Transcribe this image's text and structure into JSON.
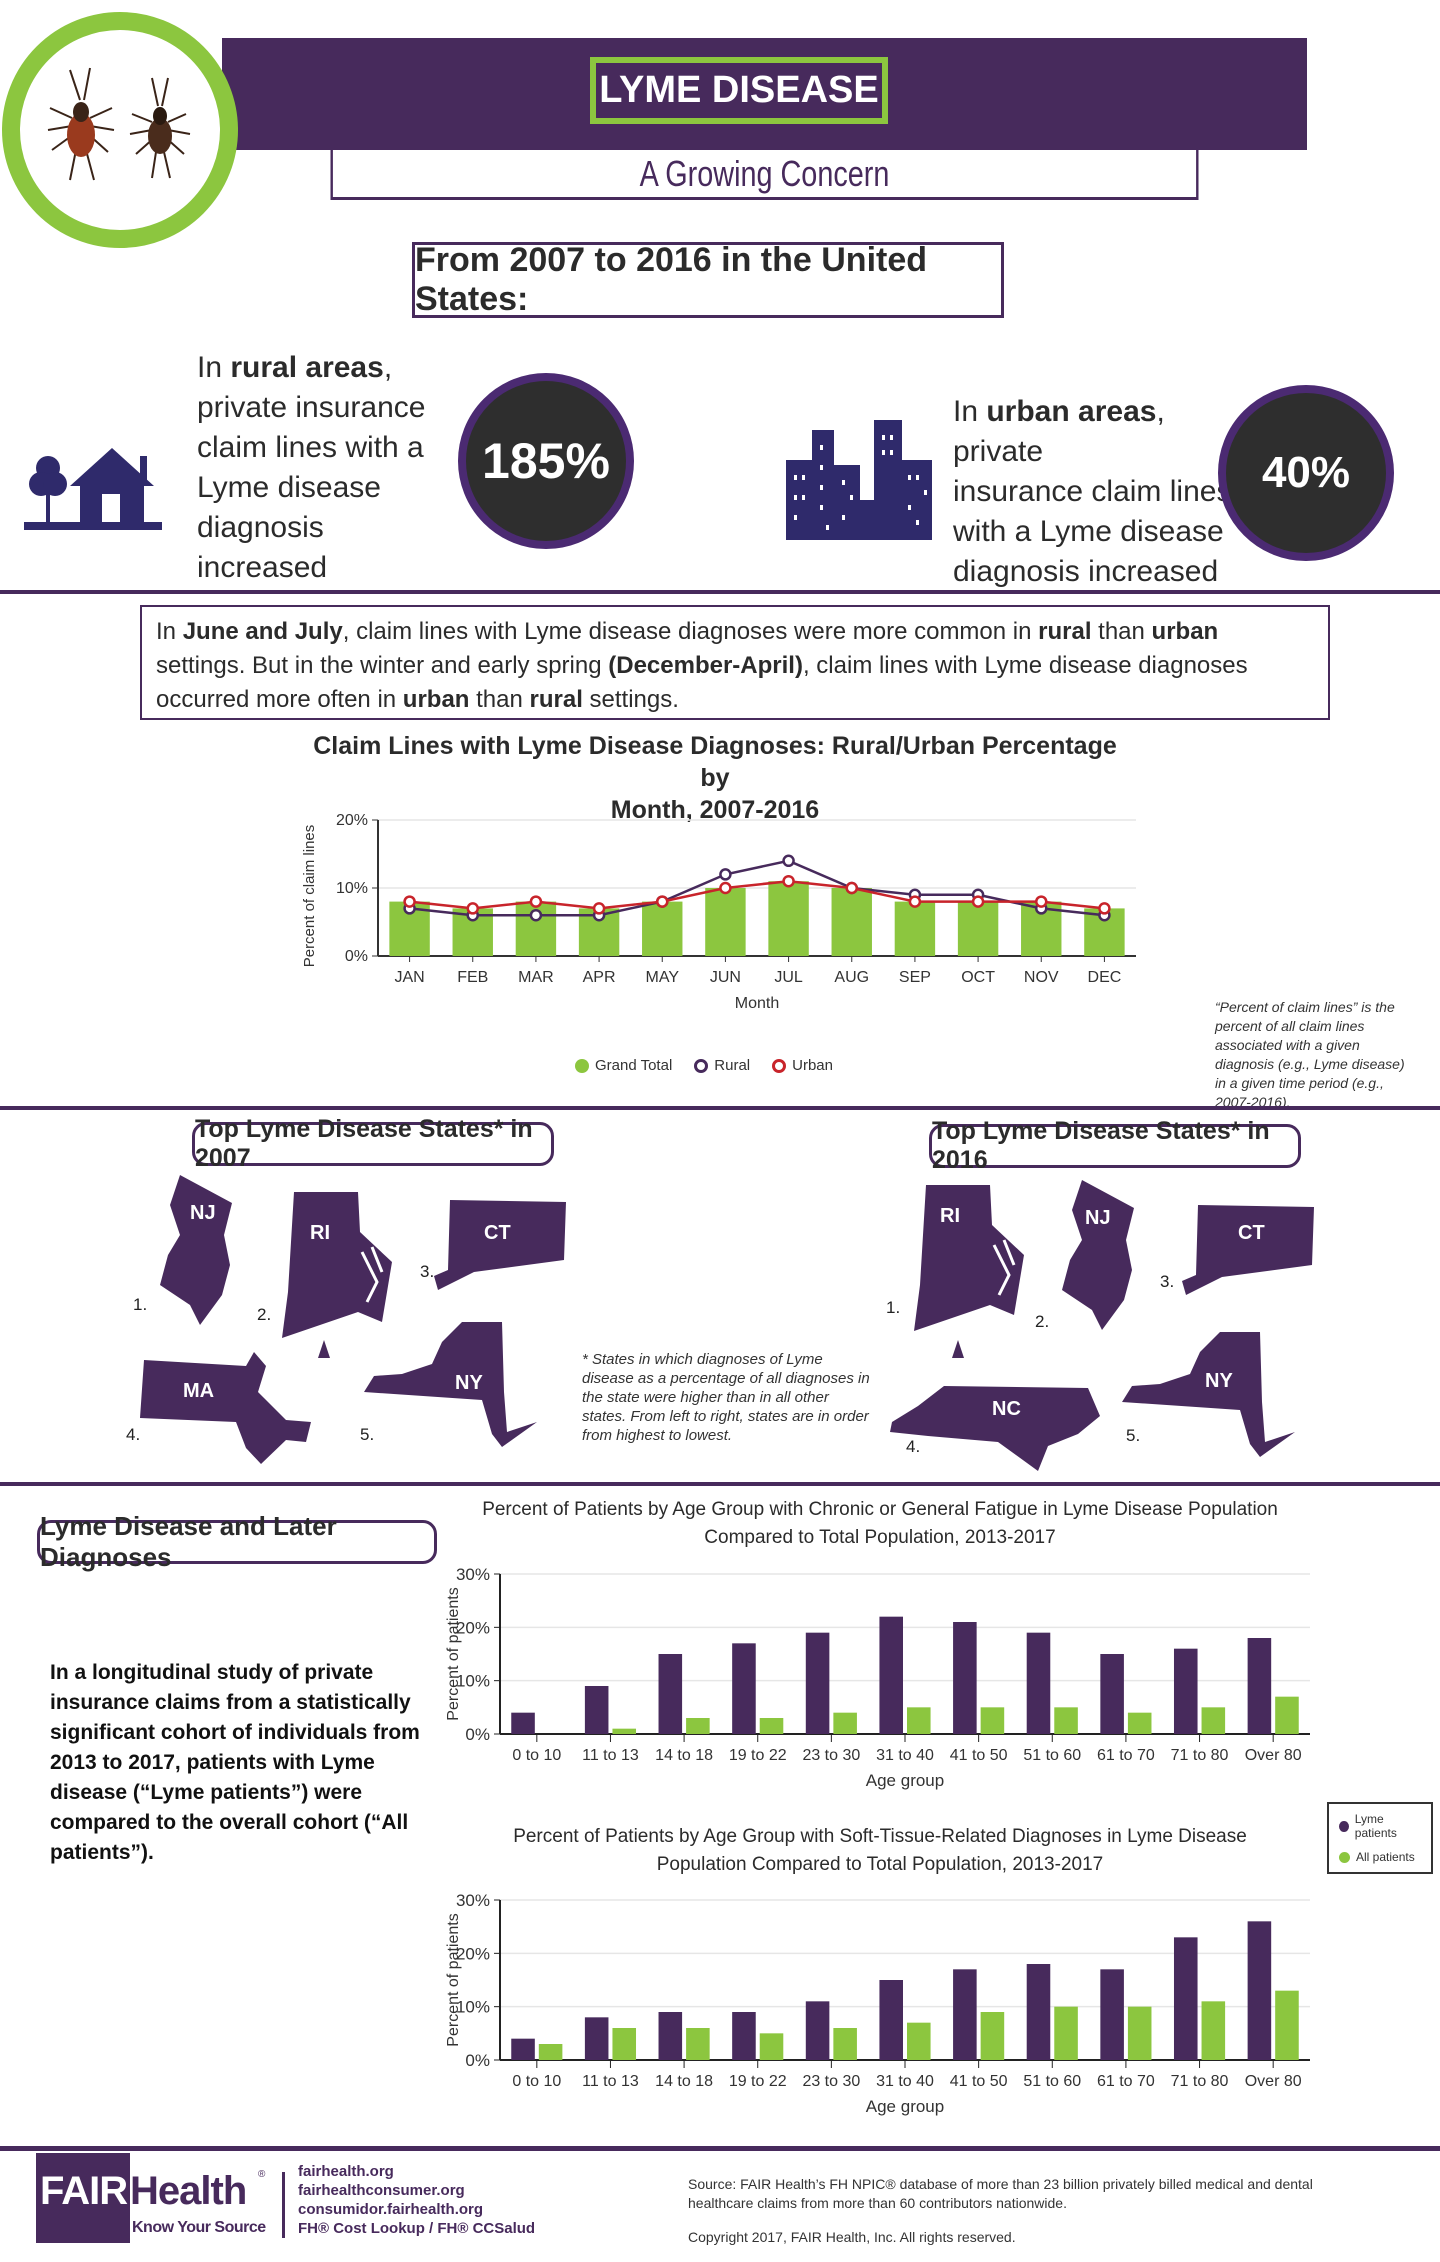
{
  "header": {
    "title": "LYME DISEASE",
    "subtitle": "A Growing Concern",
    "period_heading": "From 2007 to 2016 in the United States:"
  },
  "stats": {
    "rural": {
      "line1_pre": "In ",
      "line1_bold": "rural areas",
      "line1_post": ",",
      "lines": [
        "private insurance",
        "claim lines with a",
        "Lyme disease",
        "diagnosis increased"
      ],
      "value": "185%",
      "icon": "house-tree-icon"
    },
    "urban": {
      "line1_pre": "In ",
      "line1_bold": "urban areas",
      "line1_post": ", private",
      "lines": [
        "insurance claim lines",
        "with a Lyme disease",
        "diagnosis increased"
      ],
      "value": "40%",
      "icon": "city-buildings-icon"
    }
  },
  "note": {
    "s1": "In ",
    "b1": "June and July",
    "s2": ", claim lines with Lyme disease diagnoses were more common in ",
    "b2": "rural",
    "s3": " than ",
    "b3": "urban",
    "s4": " settings. But in the winter and early spring ",
    "b4": "(December-April)",
    "s5": ", claim lines with Lyme disease diagnoses occurred more often in ",
    "b5": "urban",
    "s6": " than ",
    "b6": "rural",
    "s7": " settings."
  },
  "chart_data": [
    {
      "type": "bar+line",
      "title": "Claim Lines with Lyme Disease Diagnoses: Rural/Urban Percentage by Month, 2007-2016",
      "xlabel": "Month",
      "ylabel": "Percent of claim lines",
      "ylim": [
        0,
        20
      ],
      "yticks": [
        "0%",
        "10%",
        "20%"
      ],
      "grid": true,
      "legend_position": "bottom",
      "categories": [
        "JAN",
        "FEB",
        "MAR",
        "APR",
        "MAY",
        "JUN",
        "JUL",
        "AUG",
        "SEP",
        "OCT",
        "NOV",
        "DEC"
      ],
      "series": [
        {
          "name": "Grand Total",
          "kind": "bar",
          "color": "#8cc63f",
          "values": [
            8,
            7,
            8,
            7,
            8,
            10,
            11,
            10,
            8,
            8,
            8,
            7
          ]
        },
        {
          "name": "Rural",
          "kind": "line",
          "color": "#472a5c",
          "values": [
            7,
            6,
            6,
            6,
            8,
            12,
            14,
            10,
            9,
            9,
            7,
            6
          ]
        },
        {
          "name": "Urban",
          "kind": "line",
          "color": "#c8242b",
          "values": [
            8,
            7,
            8,
            7,
            8,
            10,
            11,
            10,
            8,
            8,
            8,
            7
          ]
        }
      ],
      "annotation": "“Percent of claim lines” is the percent of all claim lines associated with a given diagnosis (e.g., Lyme disease) in a given time period (e.g., 2007-2016)."
    },
    {
      "type": "bar",
      "title": "Percent of Patients by Age Group with Chronic or General Fatigue in Lyme Disease Population Compared to Total Population, 2013-2017",
      "xlabel": "Age group",
      "ylabel": "Percent of patients",
      "ylim": [
        0,
        30
      ],
      "yticks": [
        "0%",
        "10%",
        "20%",
        "30%"
      ],
      "grid": true,
      "legend_position": "right",
      "categories": [
        "0 to 10",
        "11 to 13",
        "14 to 18",
        "19 to 22",
        "23 to 30",
        "31 to 40",
        "41 to 50",
        "51 to 60",
        "61 to 70",
        "71 to 80",
        "Over 80"
      ],
      "series": [
        {
          "name": "Lyme patients",
          "color": "#472a5c",
          "values": [
            4,
            9,
            15,
            17,
            19,
            22,
            21,
            19,
            15,
            16,
            18
          ]
        },
        {
          "name": "All patients",
          "color": "#8cc63f",
          "values": [
            0,
            1,
            3,
            3,
            4,
            5,
            5,
            5,
            4,
            5,
            7
          ]
        }
      ]
    },
    {
      "type": "bar",
      "title": "Percent of Patients by Age Group with Soft-Tissue-Related Diagnoses in Lyme Disease Population Compared to Total Population, 2013-2017",
      "xlabel": "Age group",
      "ylabel": "Percent of patients",
      "ylim": [
        0,
        30
      ],
      "yticks": [
        "0%",
        "10%",
        "20%",
        "30%"
      ],
      "grid": true,
      "legend_position": "right",
      "categories": [
        "0 to 10",
        "11 to 13",
        "14 to 18",
        "19 to 22",
        "23 to 30",
        "31 to 40",
        "41 to 50",
        "51 to 60",
        "61 to 70",
        "71 to 80",
        "Over 80"
      ],
      "series": [
        {
          "name": "Lyme patients",
          "color": "#472a5c",
          "values": [
            4,
            8,
            9,
            9,
            11,
            15,
            17,
            18,
            17,
            23,
            26
          ]
        },
        {
          "name": "All patients",
          "color": "#8cc63f",
          "values": [
            3,
            6,
            6,
            5,
            6,
            7,
            9,
            10,
            10,
            11,
            13
          ]
        }
      ]
    }
  ],
  "chart1": {
    "title_l1": "Claim Lines with Lyme Disease Diagnoses: Rural/Urban Percentage by",
    "title_l2": "Month, 2007-2016"
  },
  "chart2": {
    "title_l1": "Percent of Patients by Age Group with Chronic or General Fatigue in Lyme Disease Population",
    "title_l2": "Compared to Total Population, 2013-2017"
  },
  "chart3": {
    "title_l1": "Percent of Patients by Age Group with Soft-Tissue-Related Diagnoses in Lyme Disease",
    "title_l2": "Population Compared to Total Population, 2013-2017"
  },
  "states": {
    "y2007": {
      "title": "Top Lyme Disease States* in 2007",
      "items": [
        {
          "rank": "1.",
          "abbr": "NJ"
        },
        {
          "rank": "2.",
          "abbr": "RI"
        },
        {
          "rank": "3.",
          "abbr": "CT"
        },
        {
          "rank": "4.",
          "abbr": "MA"
        },
        {
          "rank": "5.",
          "abbr": "NY"
        }
      ]
    },
    "y2016": {
      "title": "Top Lyme Disease States* in 2016",
      "items": [
        {
          "rank": "1.",
          "abbr": "RI"
        },
        {
          "rank": "2.",
          "abbr": "NJ"
        },
        {
          "rank": "3.",
          "abbr": "CT"
        },
        {
          "rank": "4.",
          "abbr": "NC"
        },
        {
          "rank": "5.",
          "abbr": "NY"
        }
      ]
    },
    "footnote": "* States in which diagnoses of Lyme disease as a percentage of all diagnoses in the state were higher than in all other states. From left to right, states are in order from highest to lowest."
  },
  "later": {
    "title": "Lyme Disease and Later Diagnoses",
    "body": "In a longitudinal study of private insurance claims from a statistically significant cohort of individuals from 2013 to 2017, patients with Lyme disease (“Lyme patients”) were compared to the overall cohort (“All patients”).",
    "legend": [
      "Lyme patients",
      "All patients"
    ]
  },
  "footer": {
    "logo_fair": "FAIR",
    "logo_health": "Health",
    "logo_reg": "®",
    "tagline": "Know Your Source",
    "links": [
      "fairhealth.org",
      "fairhealthconsumer.org",
      "consumidor.fairhealth.org",
      "FH® Cost Lookup / FH® CCSalud"
    ],
    "source": "Source: FAIR Health’s FH NPIC® database of more than 23 billion privately billed medical and dental healthcare claims from more than 60 contributors nationwide.",
    "copyright": "Copyright 2017, FAIR Health, Inc. All rights reserved."
  },
  "colors": {
    "purple": "#472a5c",
    "green": "#8cc63f",
    "red": "#c8242b",
    "dark": "#2e2e2e"
  }
}
